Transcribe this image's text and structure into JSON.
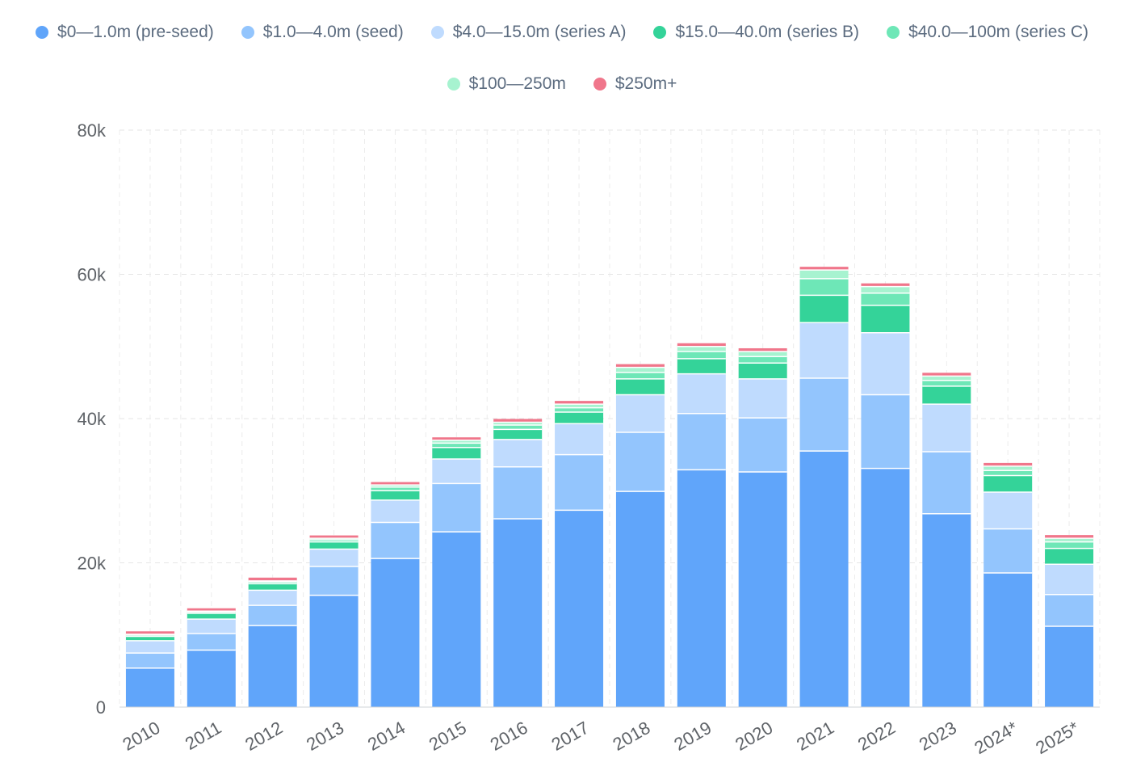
{
  "chart_data": {
    "type": "bar",
    "stacked": true,
    "categories": [
      "2010",
      "2011",
      "2012",
      "2013",
      "2014",
      "2015",
      "2016",
      "2017",
      "2018",
      "2019",
      "2020",
      "2021",
      "2022",
      "2023",
      "2024*",
      "2025*"
    ],
    "ylim": [
      0,
      80000
    ],
    "y_ticks": [
      0,
      20000,
      40000,
      60000,
      80000
    ],
    "y_tick_labels": [
      "0",
      "20k",
      "40k",
      "60k",
      "80k"
    ],
    "grid": true,
    "legend_position": "top-center",
    "series": [
      {
        "name": "$0—1.0m (pre-seed)",
        "color": "#60a5fa",
        "values": [
          5400,
          7900,
          11300,
          15500,
          20600,
          24300,
          26100,
          27300,
          29900,
          32900,
          32600,
          35500,
          33100,
          26800,
          18600,
          11200
        ]
      },
      {
        "name": "$1.0—4.0m (seed)",
        "color": "#93c5fd",
        "values": [
          2100,
          2300,
          2800,
          4000,
          5000,
          6700,
          7200,
          7700,
          8200,
          7800,
          7500,
          10100,
          10200,
          8600,
          6100,
          4400
        ]
      },
      {
        "name": "$4.0—15.0m (series A)",
        "color": "#bfdbfe",
        "values": [
          1700,
          2000,
          2100,
          2400,
          3100,
          3400,
          3800,
          4300,
          5200,
          5500,
          5400,
          7700,
          8600,
          6600,
          5100,
          4200
        ]
      },
      {
        "name": "$15.0—40.0m (series B)",
        "color": "#34d399",
        "values": [
          600,
          800,
          900,
          1000,
          1300,
          1600,
          1400,
          1600,
          2200,
          2100,
          2200,
          3800,
          3800,
          2500,
          2300,
          2200
        ]
      },
      {
        "name": "$40.0—100m (series C)",
        "color": "#6ee7b7",
        "values": [
          200,
          200,
          250,
          300,
          500,
          600,
          600,
          600,
          900,
          1000,
          900,
          2300,
          1700,
          800,
          700,
          900
        ]
      },
      {
        "name": "$100—250m",
        "color": "#a7f3d0",
        "values": [
          100,
          100,
          150,
          200,
          300,
          400,
          400,
          500,
          700,
          700,
          700,
          1200,
          900,
          600,
          600,
          500
        ]
      },
      {
        "name": "$250m+",
        "color": "#f0768b",
        "values": [
          400,
          400,
          450,
          400,
          400,
          400,
          450,
          450,
          450,
          450,
          450,
          450,
          450,
          450,
          450,
          450
        ]
      }
    ]
  }
}
